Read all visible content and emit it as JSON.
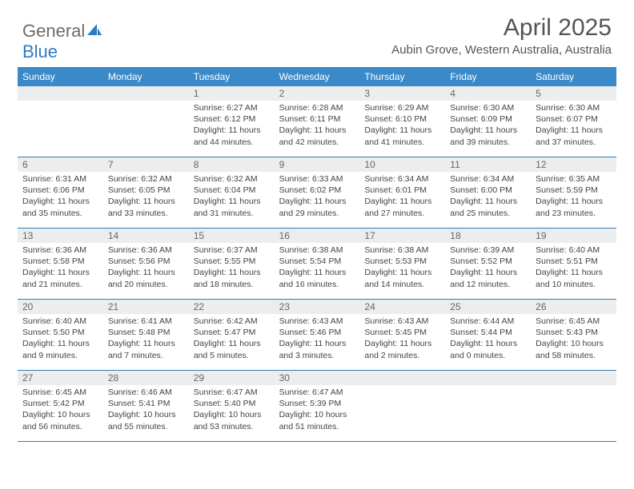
{
  "logo": {
    "text_general": "General",
    "text_blue": "Blue"
  },
  "title": "April 2025",
  "location": "Aubin Grove, Western Australia, Australia",
  "colors": {
    "header_bar": "#3a8ac9",
    "rule": "#2e7cc0",
    "daynum_bg": "#eceded",
    "text": "#444444",
    "title_text": "#555555"
  },
  "day_headers": [
    "Sunday",
    "Monday",
    "Tuesday",
    "Wednesday",
    "Thursday",
    "Friday",
    "Saturday"
  ],
  "weeks": [
    [
      {
        "blank": true
      },
      {
        "blank": true
      },
      {
        "n": "1",
        "sunrise": "Sunrise: 6:27 AM",
        "sunset": "Sunset: 6:12 PM",
        "daylight": "Daylight: 11 hours and 44 minutes."
      },
      {
        "n": "2",
        "sunrise": "Sunrise: 6:28 AM",
        "sunset": "Sunset: 6:11 PM",
        "daylight": "Daylight: 11 hours and 42 minutes."
      },
      {
        "n": "3",
        "sunrise": "Sunrise: 6:29 AM",
        "sunset": "Sunset: 6:10 PM",
        "daylight": "Daylight: 11 hours and 41 minutes."
      },
      {
        "n": "4",
        "sunrise": "Sunrise: 6:30 AM",
        "sunset": "Sunset: 6:09 PM",
        "daylight": "Daylight: 11 hours and 39 minutes."
      },
      {
        "n": "5",
        "sunrise": "Sunrise: 6:30 AM",
        "sunset": "Sunset: 6:07 PM",
        "daylight": "Daylight: 11 hours and 37 minutes."
      }
    ],
    [
      {
        "n": "6",
        "sunrise": "Sunrise: 6:31 AM",
        "sunset": "Sunset: 6:06 PM",
        "daylight": "Daylight: 11 hours and 35 minutes."
      },
      {
        "n": "7",
        "sunrise": "Sunrise: 6:32 AM",
        "sunset": "Sunset: 6:05 PM",
        "daylight": "Daylight: 11 hours and 33 minutes."
      },
      {
        "n": "8",
        "sunrise": "Sunrise: 6:32 AM",
        "sunset": "Sunset: 6:04 PM",
        "daylight": "Daylight: 11 hours and 31 minutes."
      },
      {
        "n": "9",
        "sunrise": "Sunrise: 6:33 AM",
        "sunset": "Sunset: 6:02 PM",
        "daylight": "Daylight: 11 hours and 29 minutes."
      },
      {
        "n": "10",
        "sunrise": "Sunrise: 6:34 AM",
        "sunset": "Sunset: 6:01 PM",
        "daylight": "Daylight: 11 hours and 27 minutes."
      },
      {
        "n": "11",
        "sunrise": "Sunrise: 6:34 AM",
        "sunset": "Sunset: 6:00 PM",
        "daylight": "Daylight: 11 hours and 25 minutes."
      },
      {
        "n": "12",
        "sunrise": "Sunrise: 6:35 AM",
        "sunset": "Sunset: 5:59 PM",
        "daylight": "Daylight: 11 hours and 23 minutes."
      }
    ],
    [
      {
        "n": "13",
        "sunrise": "Sunrise: 6:36 AM",
        "sunset": "Sunset: 5:58 PM",
        "daylight": "Daylight: 11 hours and 21 minutes."
      },
      {
        "n": "14",
        "sunrise": "Sunrise: 6:36 AM",
        "sunset": "Sunset: 5:56 PM",
        "daylight": "Daylight: 11 hours and 20 minutes."
      },
      {
        "n": "15",
        "sunrise": "Sunrise: 6:37 AM",
        "sunset": "Sunset: 5:55 PM",
        "daylight": "Daylight: 11 hours and 18 minutes."
      },
      {
        "n": "16",
        "sunrise": "Sunrise: 6:38 AM",
        "sunset": "Sunset: 5:54 PM",
        "daylight": "Daylight: 11 hours and 16 minutes."
      },
      {
        "n": "17",
        "sunrise": "Sunrise: 6:38 AM",
        "sunset": "Sunset: 5:53 PM",
        "daylight": "Daylight: 11 hours and 14 minutes."
      },
      {
        "n": "18",
        "sunrise": "Sunrise: 6:39 AM",
        "sunset": "Sunset: 5:52 PM",
        "daylight": "Daylight: 11 hours and 12 minutes."
      },
      {
        "n": "19",
        "sunrise": "Sunrise: 6:40 AM",
        "sunset": "Sunset: 5:51 PM",
        "daylight": "Daylight: 11 hours and 10 minutes."
      }
    ],
    [
      {
        "n": "20",
        "sunrise": "Sunrise: 6:40 AM",
        "sunset": "Sunset: 5:50 PM",
        "daylight": "Daylight: 11 hours and 9 minutes."
      },
      {
        "n": "21",
        "sunrise": "Sunrise: 6:41 AM",
        "sunset": "Sunset: 5:48 PM",
        "daylight": "Daylight: 11 hours and 7 minutes."
      },
      {
        "n": "22",
        "sunrise": "Sunrise: 6:42 AM",
        "sunset": "Sunset: 5:47 PM",
        "daylight": "Daylight: 11 hours and 5 minutes."
      },
      {
        "n": "23",
        "sunrise": "Sunrise: 6:43 AM",
        "sunset": "Sunset: 5:46 PM",
        "daylight": "Daylight: 11 hours and 3 minutes."
      },
      {
        "n": "24",
        "sunrise": "Sunrise: 6:43 AM",
        "sunset": "Sunset: 5:45 PM",
        "daylight": "Daylight: 11 hours and 2 minutes."
      },
      {
        "n": "25",
        "sunrise": "Sunrise: 6:44 AM",
        "sunset": "Sunset: 5:44 PM",
        "daylight": "Daylight: 11 hours and 0 minutes."
      },
      {
        "n": "26",
        "sunrise": "Sunrise: 6:45 AM",
        "sunset": "Sunset: 5:43 PM",
        "daylight": "Daylight: 10 hours and 58 minutes."
      }
    ],
    [
      {
        "n": "27",
        "sunrise": "Sunrise: 6:45 AM",
        "sunset": "Sunset: 5:42 PM",
        "daylight": "Daylight: 10 hours and 56 minutes."
      },
      {
        "n": "28",
        "sunrise": "Sunrise: 6:46 AM",
        "sunset": "Sunset: 5:41 PM",
        "daylight": "Daylight: 10 hours and 55 minutes."
      },
      {
        "n": "29",
        "sunrise": "Sunrise: 6:47 AM",
        "sunset": "Sunset: 5:40 PM",
        "daylight": "Daylight: 10 hours and 53 minutes."
      },
      {
        "n": "30",
        "sunrise": "Sunrise: 6:47 AM",
        "sunset": "Sunset: 5:39 PM",
        "daylight": "Daylight: 10 hours and 51 minutes."
      },
      {
        "blank": true
      },
      {
        "blank": true
      },
      {
        "blank": true
      }
    ]
  ]
}
